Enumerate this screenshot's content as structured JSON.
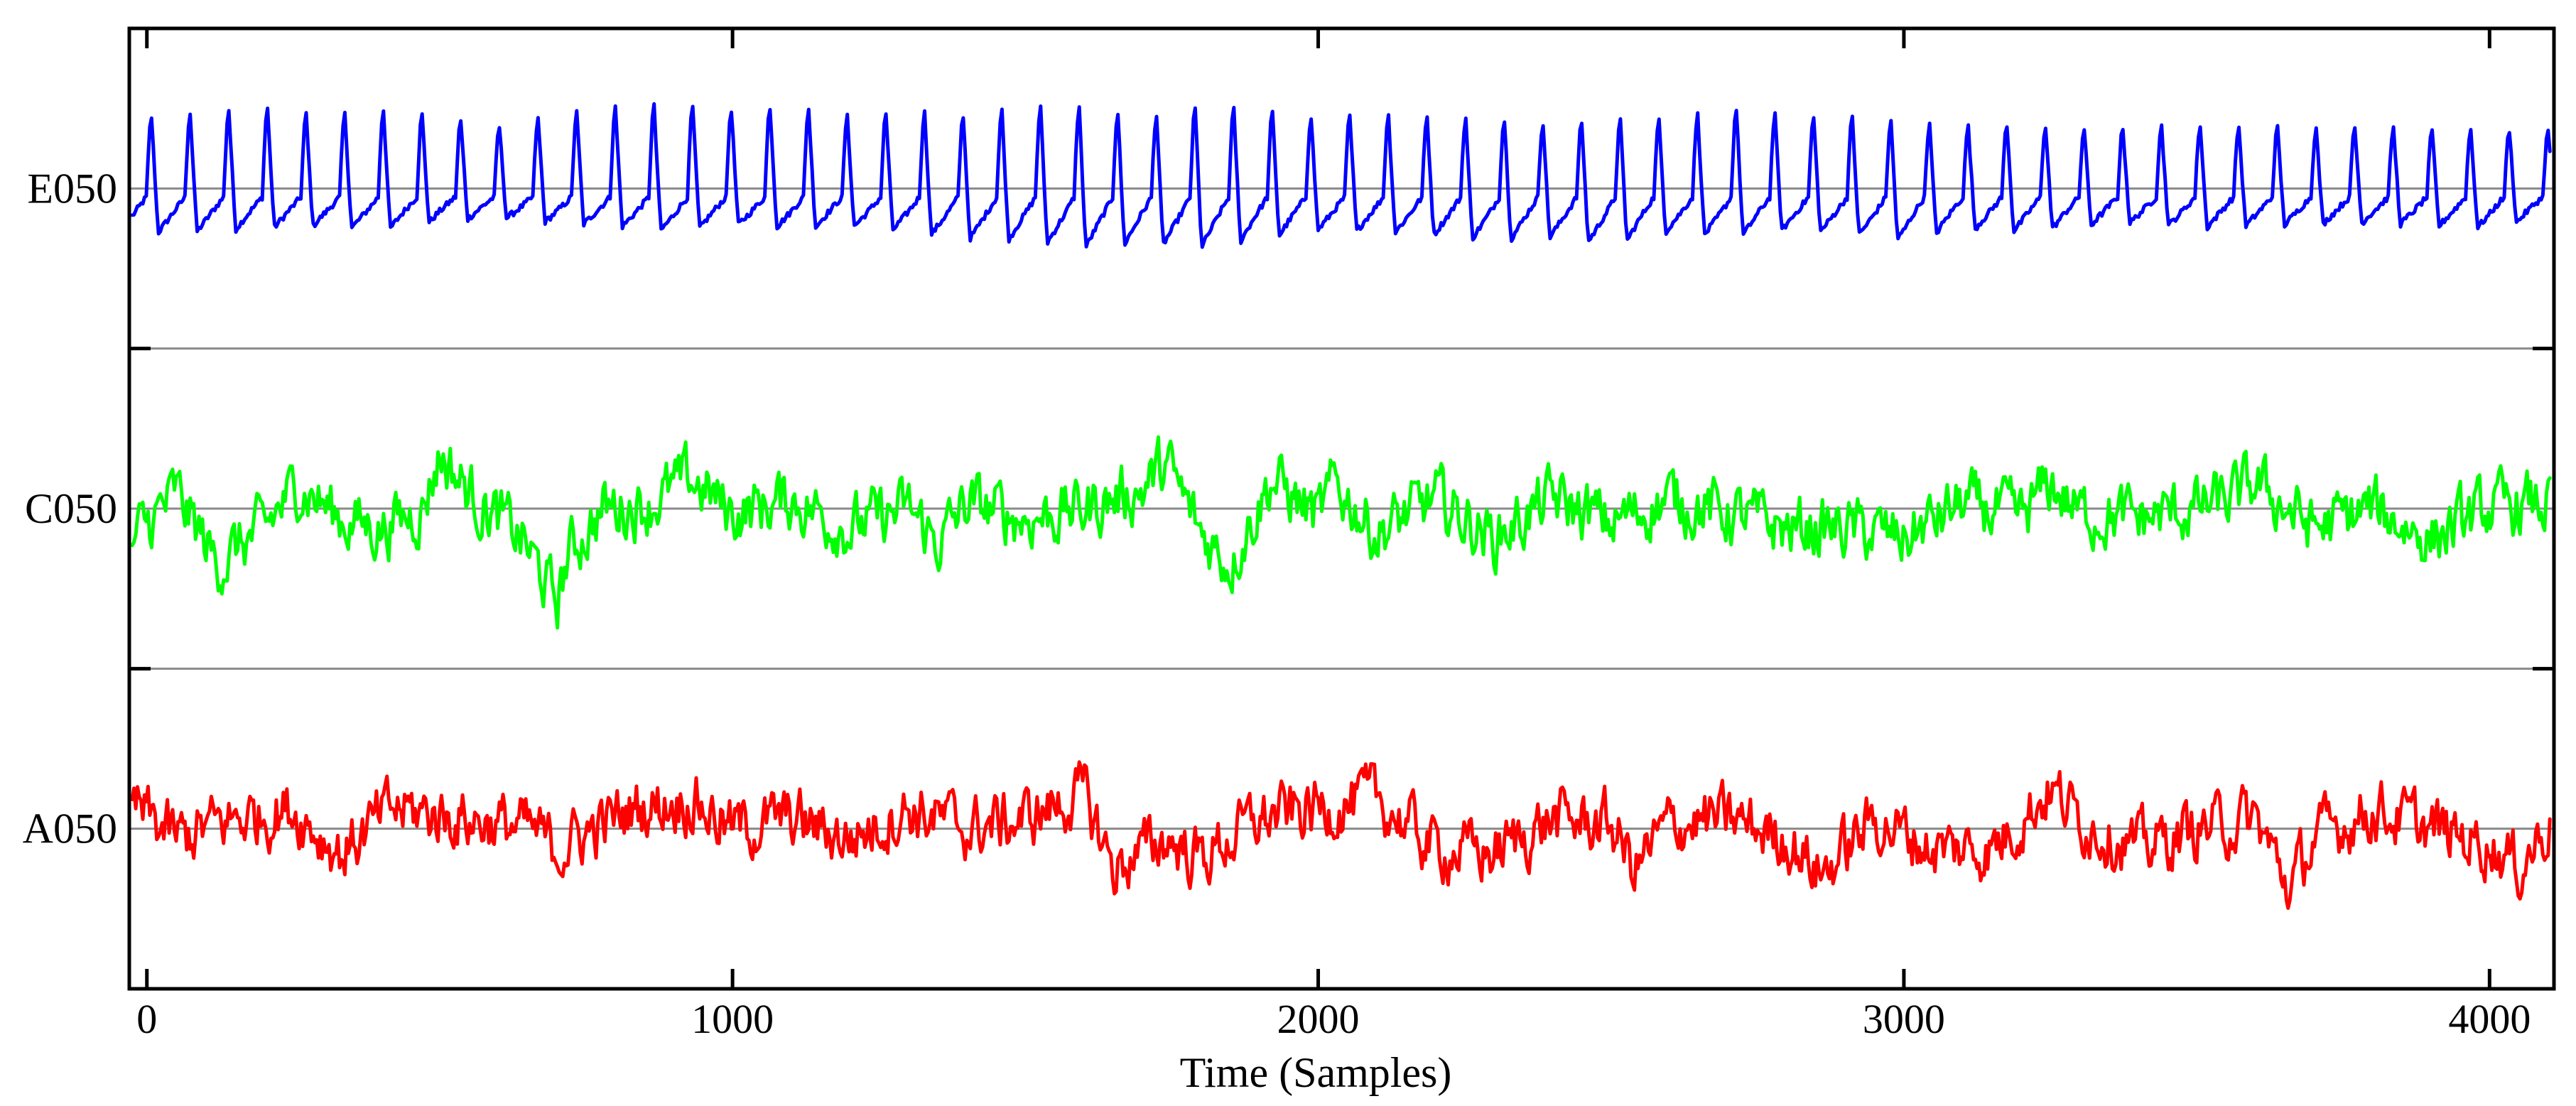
{
  "chart_data": {
    "type": "line",
    "title": "",
    "xlabel": "Time (Samples)",
    "ylabel": "",
    "xlim": [
      -30,
      4110
    ],
    "x_ticks": [
      0,
      1000,
      2000,
      3000,
      4000
    ],
    "x_tick_labels": [
      "0",
      "1000",
      "2000",
      "3000",
      "4000"
    ],
    "grid": false,
    "legend": "none",
    "series": [
      {
        "name": "E050",
        "color": "#0000ff",
        "description": "quasi-periodic spiking oscillation (~60 cycles/4000 samples)",
        "x": [
          0,
          100,
          200,
          300,
          400,
          500,
          600,
          700,
          800,
          900,
          1000,
          1100,
          1200,
          1300,
          1400,
          1500,
          1600,
          1700,
          1800,
          1900,
          2000,
          2100,
          2200,
          2300,
          2400,
          2500,
          2600,
          2700,
          2800,
          2900,
          3000,
          3100,
          3200,
          3300,
          3400,
          3500,
          3600,
          3700,
          3800,
          3900,
          4000,
          4100
        ],
        "upper_envelope": [
          0.72,
          0.78,
          0.82,
          0.72,
          0.8,
          0.72,
          0.62,
          0.74,
          0.82,
          0.84,
          0.8,
          0.84,
          0.72,
          0.78,
          0.74,
          0.82,
          0.82,
          0.72,
          0.82,
          0.78,
          0.72,
          0.74,
          0.72,
          0.7,
          0.66,
          0.68,
          0.68,
          0.82,
          0.72,
          0.72,
          0.66,
          0.62,
          0.66,
          0.6,
          0.62,
          0.64,
          0.62,
          0.6,
          0.62,
          0.58,
          0.6,
          0.58
        ],
        "lower_envelope": [
          -0.52,
          -0.5,
          -0.45,
          -0.42,
          -0.48,
          -0.35,
          -0.3,
          -0.38,
          -0.42,
          -0.5,
          -0.4,
          -0.45,
          -0.42,
          -0.5,
          -0.6,
          -0.62,
          -0.72,
          -0.66,
          -0.72,
          -0.6,
          -0.48,
          -0.5,
          -0.55,
          -0.62,
          -0.58,
          -0.68,
          -0.5,
          -0.58,
          -0.48,
          -0.52,
          -0.62,
          -0.45,
          -0.5,
          -0.42,
          -0.38,
          -0.45,
          -0.42,
          -0.4,
          -0.38,
          -0.42,
          -0.45,
          -0.3
        ]
      },
      {
        "name": "C050",
        "color": "#00ff00",
        "description": "irregular noisy fluctuation about baseline",
        "x": [
          -30,
          50,
          120,
          200,
          260,
          330,
          400,
          470,
          500,
          560,
          640,
          700,
          720,
          780,
          860,
          930,
          1000,
          1100,
          1200,
          1300,
          1350,
          1400,
          1500,
          1600,
          1700,
          1740,
          1800,
          1850,
          1920,
          2000,
          2030,
          2100,
          2200,
          2300,
          2400,
          2500,
          2600,
          2700,
          2800,
          2900,
          3000,
          3100,
          3200,
          3250,
          3300,
          3400,
          3500,
          3560,
          3600,
          3700,
          3800,
          3900,
          4000,
          4100
        ],
        "values": [
          -0.35,
          0.15,
          -0.55,
          -0.2,
          0.25,
          -0.1,
          -0.2,
          0.0,
          0.55,
          0.1,
          -0.3,
          -0.95,
          -0.45,
          0.0,
          0.05,
          0.3,
          -0.05,
          0.1,
          -0.2,
          0.0,
          -0.35,
          0.05,
          -0.1,
          0.0,
          0.2,
          0.45,
          -0.25,
          -0.55,
          0.3,
          -0.1,
          0.25,
          -0.25,
          0.1,
          -0.3,
          0.1,
          -0.15,
          0.1,
          -0.05,
          -0.2,
          -0.2,
          -0.3,
          0.05,
          -0.1,
          0.25,
          -0.05,
          -0.1,
          0.0,
          0.1,
          0.25,
          -0.2,
          0.0,
          -0.3,
          0.0,
          0.05
        ]
      },
      {
        "name": "A050",
        "color": "#ff0000",
        "description": "irregular noisy fluctuation about baseline",
        "x": [
          -30,
          50,
          150,
          250,
          330,
          420,
          550,
          650,
          700,
          830,
          930,
          1000,
          1100,
          1200,
          1300,
          1400,
          1500,
          1600,
          1650,
          1740,
          1800,
          1900,
          2000,
          2100,
          2200,
          2300,
          2400,
          2500,
          2540,
          2600,
          2700,
          2800,
          2860,
          2950,
          3050,
          3150,
          3250,
          3300,
          3400,
          3500,
          3600,
          3660,
          3700,
          3800,
          3900,
          4000,
          4050,
          4100
        ],
        "values": [
          0.25,
          -0.1,
          0.1,
          0.2,
          -0.25,
          0.2,
          0.1,
          0.0,
          -0.2,
          0.2,
          0.3,
          0.0,
          0.1,
          -0.1,
          0.2,
          0.0,
          0.1,
          0.35,
          -0.4,
          -0.1,
          -0.3,
          0.1,
          0.2,
          0.3,
          -0.2,
          -0.25,
          0.1,
          0.05,
          -0.4,
          0.05,
          0.1,
          -0.1,
          -0.45,
          0.1,
          -0.2,
          -0.2,
          0.4,
          0.1,
          -0.2,
          0.0,
          0.1,
          -0.6,
          -0.1,
          0.2,
          0.0,
          -0.15,
          -0.4,
          0.05
        ]
      }
    ]
  }
}
